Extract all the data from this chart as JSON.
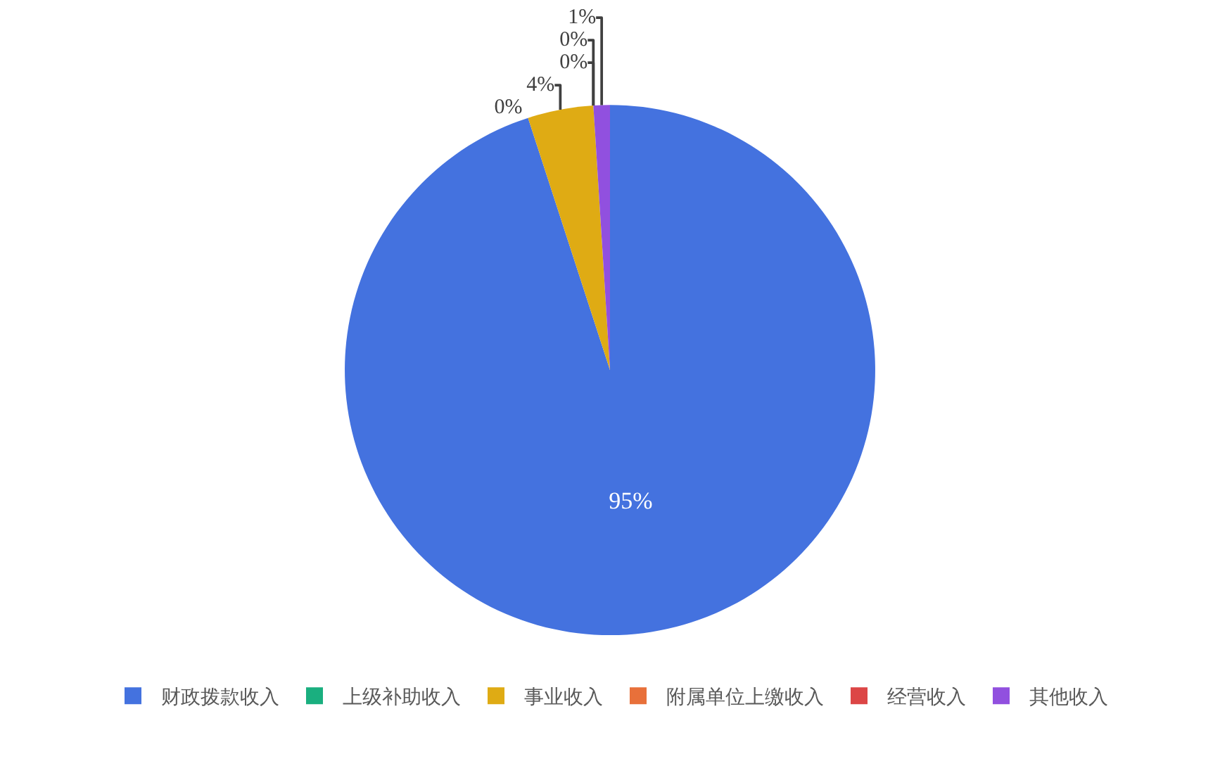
{
  "chart_data": {
    "type": "pie",
    "categories": [
      "财政拨款收入",
      "上级补助收入",
      "事业收入",
      "附属单位上缴收入",
      "经营收入",
      "其他收入"
    ],
    "values": [
      95,
      0,
      4,
      0,
      0,
      1
    ],
    "colors": [
      "#4472df",
      "#1aaf7f",
      "#dfab14",
      "#e8703a",
      "#dc4646",
      "#9150df"
    ],
    "value_labels": [
      "95%",
      "0%",
      "4%",
      "0%",
      "0%",
      "1%"
    ],
    "legend": "bottom"
  }
}
